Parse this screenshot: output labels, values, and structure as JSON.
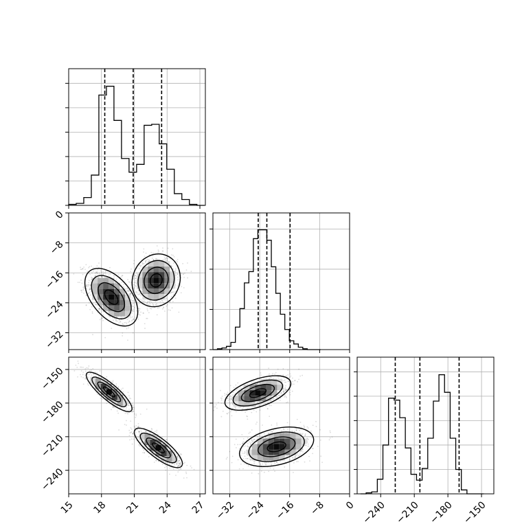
{
  "chart_data": {
    "type": "corner",
    "grid": true,
    "histograms": [
      {
        "var": "x0",
        "bin_edges": [
          15.0,
          15.69,
          16.38,
          17.07,
          17.76,
          18.45,
          19.14,
          19.83,
          20.52,
          21.21,
          21.9,
          22.59,
          23.28,
          23.97,
          24.66,
          25.35,
          26.04,
          26.73,
          27.42
        ],
        "counts": [
          1,
          2,
          8,
          31,
          113,
          122,
          87,
          48,
          34,
          42,
          82,
          83,
          63,
          37,
          12,
          6,
          1,
          0
        ],
        "quantiles": [
          18.3,
          20.9,
          23.5
        ],
        "yticks": [
          0,
          25,
          50,
          75,
          100,
          125
        ]
      },
      {
        "var": "x1",
        "bin_edges": [
          -36.5,
          -35.3,
          -34.1,
          -32.9,
          -31.7,
          -30.5,
          -29.3,
          -28.1,
          -26.9,
          -25.7,
          -24.5,
          -23.3,
          -22.1,
          -20.9,
          -19.7,
          -18.5,
          -17.3,
          -16.1,
          -14.9,
          -13.7,
          -12.5,
          -11.3,
          -10.1,
          -8.9,
          -7.7
        ],
        "counts": [
          0,
          1,
          2,
          4,
          9,
          28,
          51,
          83,
          97,
          138,
          149,
          149,
          136,
          103,
          70,
          44,
          25,
          11,
          7,
          3,
          1,
          0,
          0,
          0
        ],
        "quantiles": [
          -24.4,
          -22.1,
          -15.9
        ],
        "yticks": [
          0,
          50,
          100,
          150
        ]
      },
      {
        "var": "x2",
        "bin_edges": [
          -258,
          -253,
          -248,
          -243,
          -238,
          -233,
          -228,
          -223,
          -218,
          -213,
          -208,
          -203,
          -198,
          -193,
          -188,
          -183,
          -178,
          -173,
          -168,
          -163,
          -158,
          -153,
          -148
        ],
        "counts": [
          0,
          1,
          2,
          15,
          50,
          98,
          96,
          78,
          47,
          20,
          14,
          26,
          57,
          95,
          122,
          104,
          57,
          25,
          4,
          0,
          0,
          0
        ],
        "quantiles": [
          -227,
          -205,
          -170
        ],
        "yticks": [
          0,
          25,
          50,
          75,
          100,
          125
        ]
      }
    ],
    "pair_plots": [
      {
        "x": "x0",
        "y": "x1",
        "clusters": [
          {
            "cx": 18.9,
            "cy": -22.5,
            "sx": 1.1,
            "sy": 3.5,
            "rho": -0.5
          },
          {
            "cx": 23.0,
            "cy": -18.0,
            "sx": 1.0,
            "sy": 3.2,
            "rho": 0.1
          }
        ]
      },
      {
        "x": "x0",
        "y": "x2",
        "clusters": [
          {
            "cx": 18.7,
            "cy": -170,
            "sx": 0.95,
            "sy": 8,
            "rho": -0.85
          },
          {
            "cx": 23.2,
            "cy": -220,
            "sx": 1.0,
            "sy": 8,
            "rho": -0.8
          }
        ]
      },
      {
        "x": "x1",
        "y": "x2",
        "clusters": [
          {
            "cx": -24.5,
            "cy": -171,
            "sx": 4.0,
            "sy": 7,
            "rho": 0.55
          },
          {
            "cx": -19.5,
            "cy": -219,
            "sx": 4.5,
            "sy": 8,
            "rho": 0.35
          }
        ]
      }
    ],
    "axes": {
      "x0": {
        "lim": [
          15,
          27.5
        ],
        "ticks": [
          15,
          18,
          21,
          24,
          27
        ],
        "tick_labels": [
          "15",
          "18",
          "21",
          "24",
          "27"
        ]
      },
      "x1": {
        "lim": [
          -36.5,
          0
        ],
        "ticks": [
          -32,
          -24,
          -16,
          -8,
          0
        ],
        "tick_labels": [
          "−32",
          "−24",
          "−16",
          "−8",
          "0"
        ]
      },
      "x2": {
        "lim": [
          -261,
          -139
        ],
        "ticks": [
          -240,
          -210,
          -180,
          -150
        ],
        "tick_labels": [
          "−240",
          "−210",
          "−180",
          "−150"
        ]
      }
    }
  }
}
